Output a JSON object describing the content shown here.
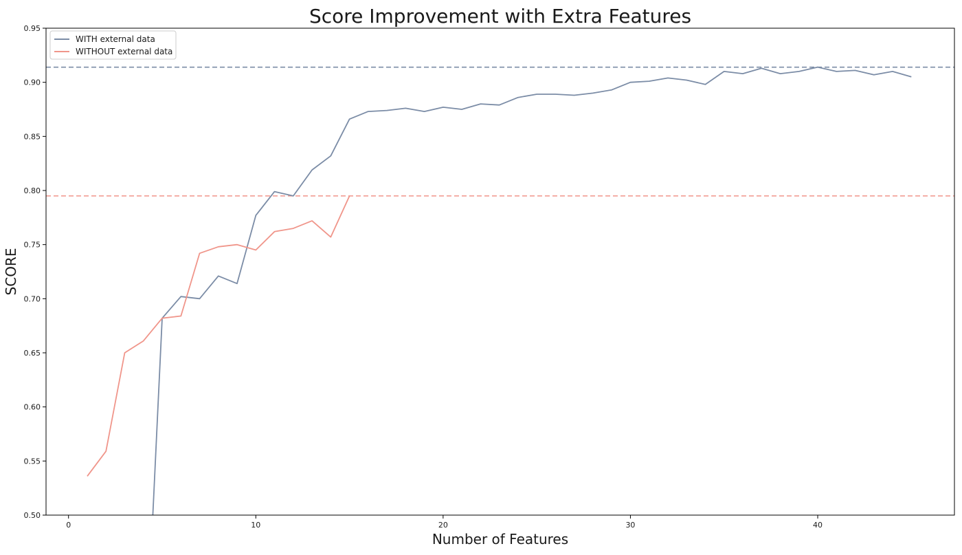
{
  "chart_data": {
    "type": "line",
    "title": "Score Improvement with Extra Features",
    "xlabel": "Number of Features",
    "ylabel": "SCORE",
    "xlim": [
      -1.2,
      47.3
    ],
    "ylim": [
      0.5,
      0.95
    ],
    "xticks": [
      0,
      10,
      20,
      30,
      40
    ],
    "yticks": [
      0.5,
      0.55,
      0.6,
      0.65,
      0.7,
      0.75,
      0.8,
      0.85,
      0.9,
      0.95
    ],
    "ytick_labels": [
      "0.50",
      "0.55",
      "0.60",
      "0.65",
      "0.70",
      "0.75",
      "0.80",
      "0.85",
      "0.90",
      "0.95"
    ],
    "grid": false,
    "legend_position": "top-left",
    "series": [
      {
        "name": "WITH external data",
        "color": "#7b8ca6",
        "x": [
          4.5,
          5,
          6,
          7,
          8,
          9,
          10,
          11,
          12,
          13,
          14,
          15,
          16,
          17,
          18,
          19,
          20,
          21,
          22,
          23,
          24,
          25,
          26,
          27,
          28,
          29,
          30,
          31,
          32,
          33,
          34,
          35,
          36,
          37,
          38,
          39,
          40,
          41,
          42,
          43,
          44,
          45
        ],
        "y": [
          0.5,
          0.682,
          0.702,
          0.7,
          0.721,
          0.714,
          0.777,
          0.799,
          0.795,
          0.819,
          0.832,
          0.866,
          0.873,
          0.874,
          0.876,
          0.873,
          0.877,
          0.875,
          0.88,
          0.879,
          0.886,
          0.889,
          0.889,
          0.888,
          0.89,
          0.893,
          0.9,
          0.901,
          0.904,
          0.902,
          0.898,
          0.91,
          0.908,
          0.913,
          0.908,
          0.91,
          0.914,
          0.91,
          0.911,
          0.907,
          0.91,
          0.905
        ]
      },
      {
        "name": "WITHOUT external data",
        "color": "#f0958a",
        "x": [
          1,
          2,
          3,
          4,
          5,
          6,
          7,
          8,
          9,
          10,
          11,
          12,
          13,
          14,
          15
        ],
        "y": [
          0.536,
          0.559,
          0.65,
          0.661,
          0.682,
          0.684,
          0.742,
          0.748,
          0.75,
          0.745,
          0.762,
          0.765,
          0.772,
          0.757,
          0.795
        ]
      }
    ],
    "hlines": [
      {
        "y": 0.914,
        "color": "#7b8ca6",
        "style": "dashed"
      },
      {
        "y": 0.795,
        "color": "#f0958a",
        "style": "dashed"
      }
    ]
  }
}
